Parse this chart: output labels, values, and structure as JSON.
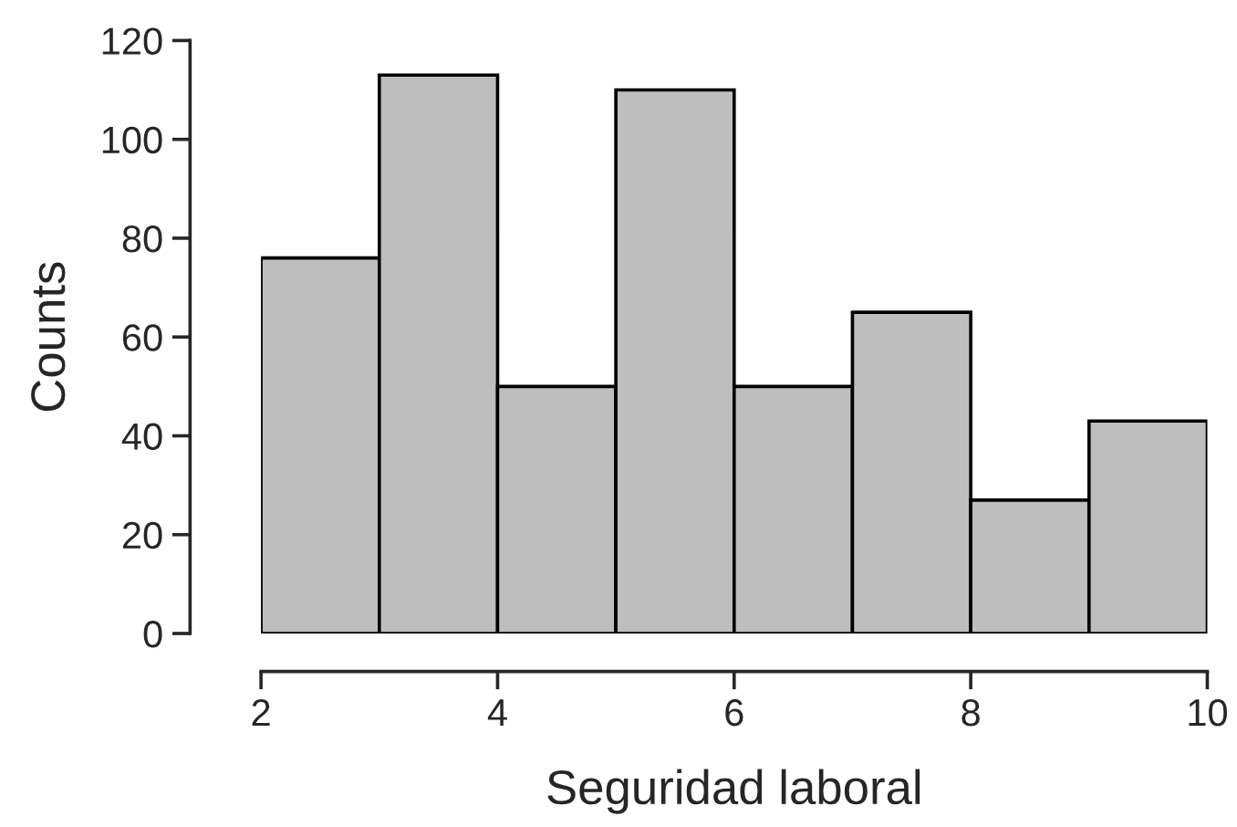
{
  "chart_data": {
    "type": "histogram",
    "xlabel": "Seguridad laboral",
    "ylabel": "Counts",
    "bins": [
      2,
      3,
      4,
      5,
      6,
      7,
      8,
      9,
      10
    ],
    "values": [
      76,
      113,
      50,
      110,
      50,
      65,
      27,
      43
    ],
    "color": "#bebebe",
    "xlim": [
      2,
      10
    ],
    "xticks": [
      2,
      4,
      6,
      8,
      10
    ],
    "ylim": [
      0,
      120
    ],
    "yticks": [
      0,
      20,
      40,
      60,
      80,
      100,
      120
    ],
    "grid": false
  }
}
